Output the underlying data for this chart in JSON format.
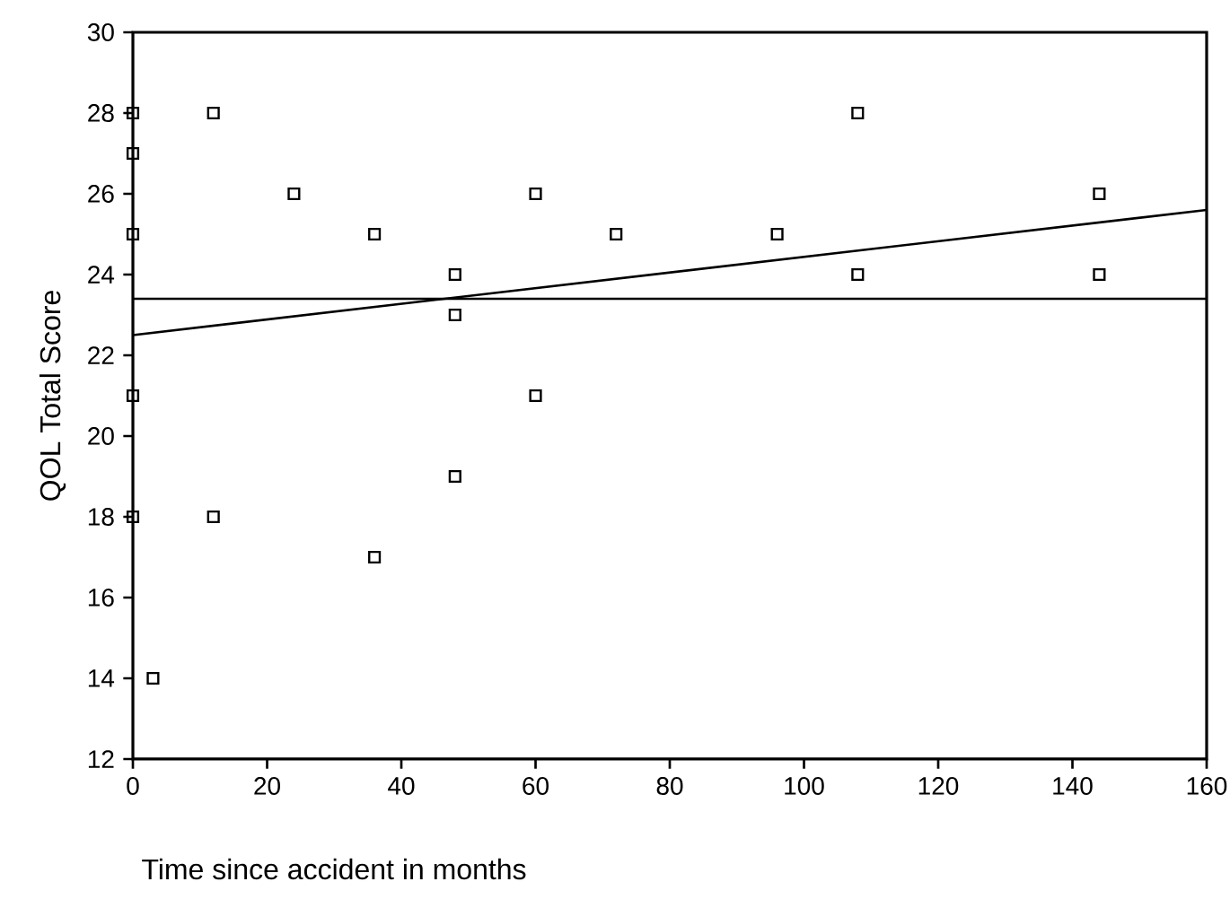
{
  "chart_data": {
    "type": "scatter",
    "xlabel": "Time since accident in months",
    "ylabel": "QOL Total Score",
    "xlim": [
      0,
      160
    ],
    "ylim": [
      12,
      30
    ],
    "xticks": [
      0,
      20,
      40,
      60,
      80,
      100,
      120,
      140,
      160
    ],
    "yticks": [
      12,
      14,
      16,
      18,
      20,
      22,
      24,
      26,
      28,
      30
    ],
    "marker": "square",
    "series": [
      {
        "color": "#000000",
        "x": [
          0,
          0,
          0,
          0,
          0,
          3,
          12,
          12,
          24,
          36,
          36,
          48,
          48,
          48,
          60,
          60,
          72,
          96,
          108,
          108,
          144,
          144
        ],
        "values": [
          28,
          27,
          25,
          21,
          18,
          14,
          28,
          18,
          26,
          25,
          17,
          24,
          23,
          19,
          26,
          21,
          25,
          25,
          28,
          24,
          26,
          24
        ]
      },
      {
        "type": "line",
        "marker": "none",
        "color": "#000000",
        "x": [
          0,
          160
        ],
        "values": [
          22.5,
          25.6
        ]
      }
    ],
    "ref_lines": [
      {
        "axis": "y",
        "value": 23.4,
        "color": "#000000"
      }
    ]
  }
}
